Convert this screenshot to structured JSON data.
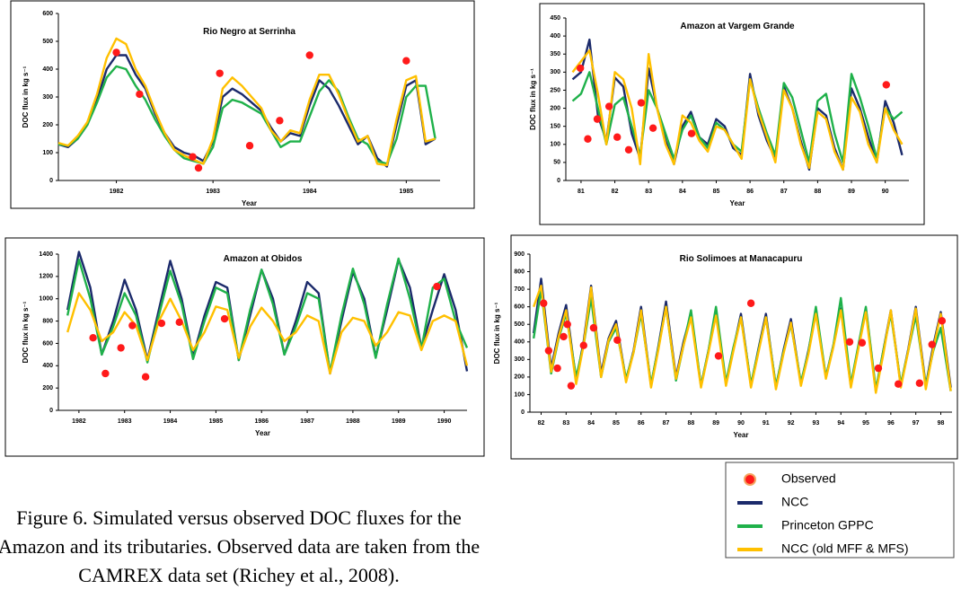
{
  "chart_data": [
    {
      "type": "line",
      "title": "Rio Negro at Serrinha",
      "xlabel": "Year",
      "ylabel": "DOC flux in kg s⁻¹",
      "xlim": [
        1981.4,
        1985.35
      ],
      "xticks": [
        1982,
        1983,
        1984,
        1985
      ],
      "ylim": [
        0,
        600
      ],
      "yticks": [
        0,
        100,
        200,
        300,
        400,
        500,
        600
      ],
      "x": [
        1981.4,
        1981.5,
        1981.6,
        1981.7,
        1981.8,
        1981.9,
        1982.0,
        1982.1,
        1982.2,
        1982.3,
        1982.4,
        1982.5,
        1982.6,
        1982.7,
        1982.8,
        1982.9,
        1983.0,
        1983.1,
        1983.2,
        1983.3,
        1983.4,
        1983.5,
        1983.6,
        1983.7,
        1983.8,
        1983.9,
        1984.0,
        1984.1,
        1984.2,
        1984.3,
        1984.4,
        1984.5,
        1984.6,
        1984.7,
        1984.8,
        1984.9,
        1985.0,
        1985.1,
        1985.2,
        1985.3
      ],
      "series": [
        {
          "values": [
            130,
            120,
            150,
            200,
            290,
            400,
            450,
            450,
            380,
            330,
            240,
            170,
            120,
            100,
            90,
            70,
            140,
            300,
            330,
            310,
            280,
            250,
            190,
            140,
            170,
            160,
            270,
            360,
            330,
            270,
            200,
            130,
            160,
            80,
            50,
            200,
            340,
            360,
            130,
            150
          ]
        },
        {
          "values": [
            130,
            125,
            150,
            200,
            280,
            370,
            410,
            400,
            340,
            290,
            220,
            160,
            110,
            80,
            70,
            60,
            120,
            260,
            290,
            280,
            260,
            240,
            180,
            120,
            140,
            140,
            230,
            320,
            360,
            320,
            230,
            150,
            130,
            70,
            60,
            150,
            300,
            340,
            340,
            150
          ]
        },
        {
          "values": [
            135,
            125,
            160,
            210,
            310,
            440,
            510,
            490,
            400,
            340,
            250,
            170,
            110,
            90,
            75,
            60,
            150,
            330,
            370,
            340,
            300,
            260,
            180,
            140,
            180,
            170,
            290,
            380,
            380,
            310,
            220,
            140,
            160,
            60,
            55,
            220,
            360,
            375,
            140,
            150
          ]
        }
      ],
      "observed": {
        "x": [
          1982.0,
          1982.24,
          1982.79,
          1982.85,
          1983.07,
          1983.38,
          1983.69,
          1984.0,
          1985.0
        ],
        "values": [
          460,
          310,
          85,
          45,
          385,
          125,
          215,
          450,
          430
        ]
      }
    },
    {
      "type": "line",
      "title": "Amazon at Vargem Grande",
      "xlabel": "Year",
      "ylabel": "DOC flux in kg s⁻¹",
      "xlim": [
        80.55,
        90.7
      ],
      "xticks": [
        81,
        82,
        83,
        84,
        85,
        86,
        87,
        88,
        89,
        90
      ],
      "ylim": [
        0,
        450
      ],
      "yticks": [
        0,
        50,
        100,
        150,
        200,
        250,
        300,
        350,
        400,
        450
      ],
      "x": [
        80.75,
        81.0,
        81.25,
        81.5,
        81.75,
        82.0,
        82.25,
        82.5,
        82.75,
        83.0,
        83.25,
        83.5,
        83.75,
        84.0,
        84.25,
        84.5,
        84.75,
        85.0,
        85.25,
        85.5,
        85.75,
        86.0,
        86.25,
        86.5,
        86.75,
        87.0,
        87.25,
        87.5,
        87.75,
        88.0,
        88.25,
        88.5,
        88.75,
        89.0,
        89.25,
        89.5,
        89.75,
        90.0,
        90.25,
        90.5
      ],
      "series": [
        {
          "values": [
            280,
            300,
            390,
            180,
            110,
            285,
            260,
            130,
            60,
            310,
            200,
            110,
            45,
            150,
            190,
            120,
            100,
            170,
            150,
            90,
            70,
            295,
            180,
            110,
            60,
            260,
            200,
            110,
            30,
            200,
            180,
            90,
            30,
            255,
            200,
            120,
            50,
            220,
            160,
            70
          ]
        },
        {
          "values": [
            220,
            240,
            300,
            200,
            100,
            210,
            230,
            150,
            70,
            250,
            200,
            130,
            60,
            140,
            180,
            120,
            90,
            160,
            140,
            100,
            80,
            280,
            200,
            130,
            70,
            270,
            230,
            140,
            50,
            220,
            240,
            130,
            50,
            295,
            230,
            150,
            60,
            200,
            170,
            190
          ]
        },
        {
          "values": [
            300,
            330,
            360,
            240,
            100,
            300,
            280,
            200,
            45,
            350,
            200,
            100,
            45,
            180,
            160,
            110,
            80,
            150,
            140,
            100,
            60,
            280,
            190,
            120,
            50,
            250,
            200,
            100,
            35,
            190,
            170,
            80,
            30,
            230,
            190,
            100,
            50,
            200,
            140,
            100
          ]
        }
      ],
      "observed": {
        "x": [
          80.98,
          81.2,
          81.48,
          81.83,
          82.07,
          82.41,
          82.78,
          83.13,
          84.27,
          90.03
        ],
        "values": [
          311,
          115,
          170,
          205,
          120,
          85,
          215,
          145,
          130,
          265
        ]
      }
    },
    {
      "type": "line",
      "title": "Amazon at Obidos",
      "xlabel": "Year",
      "ylabel": "DOC flux in kg s⁻¹",
      "xlim": [
        1981.55,
        1990.5
      ],
      "xticks": [
        1982,
        1983,
        1984,
        1985,
        1986,
        1987,
        1988,
        1989,
        1990
      ],
      "ylim": [
        0,
        1400
      ],
      "yticks": [
        0,
        200,
        400,
        600,
        800,
        1000,
        1200,
        1400
      ],
      "x": [
        1981.75,
        1982.0,
        1982.25,
        1982.5,
        1982.75,
        1983.0,
        1983.25,
        1983.5,
        1983.75,
        1984.0,
        1984.25,
        1984.5,
        1984.75,
        1985.0,
        1985.25,
        1985.5,
        1985.75,
        1986.0,
        1986.25,
        1986.5,
        1986.75,
        1987.0,
        1987.25,
        1987.5,
        1987.75,
        1988.0,
        1988.25,
        1988.5,
        1988.75,
        1989.0,
        1989.25,
        1989.5,
        1989.75,
        1990.0,
        1990.25,
        1990.5
      ],
      "series": [
        {
          "values": [
            900,
            1420,
            1100,
            500,
            800,
            1170,
            900,
            450,
            900,
            1340,
            1000,
            480,
            850,
            1150,
            1100,
            450,
            850,
            1260,
            1000,
            500,
            800,
            1150,
            1050,
            330,
            800,
            1240,
            1000,
            480,
            900,
            1350,
            1100,
            560,
            900,
            1220,
            900,
            350
          ]
        },
        {
          "values": [
            850,
            1350,
            1000,
            500,
            750,
            1050,
            850,
            430,
            850,
            1250,
            950,
            460,
            800,
            1100,
            1050,
            450,
            900,
            1260,
            950,
            500,
            750,
            1050,
            1000,
            340,
            850,
            1270,
            950,
            470,
            950,
            1360,
            1000,
            550,
            1100,
            1180,
            800,
            560
          ]
        },
        {
          "values": [
            700,
            1050,
            900,
            620,
            700,
            880,
            760,
            450,
            800,
            1000,
            800,
            540,
            700,
            930,
            900,
            470,
            750,
            920,
            800,
            620,
            700,
            850,
            800,
            330,
            700,
            830,
            800,
            580,
            700,
            880,
            850,
            540,
            800,
            850,
            800,
            400
          ]
        }
      ],
      "observed": {
        "x": [
          1982.31,
          1982.58,
          1982.92,
          1983.17,
          1983.46,
          1983.81,
          1984.2,
          1985.19,
          1989.84
        ],
        "values": [
          650,
          330,
          560,
          760,
          300,
          780,
          790,
          820,
          1110
        ]
      }
    },
    {
      "type": "line",
      "title": "Rio Solimoes at Manacapuru",
      "xlabel": "Year",
      "ylabel": "DOC flux in kg s⁻¹",
      "xlim": [
        81.55,
        98.45
      ],
      "xticks": [
        82,
        83,
        84,
        85,
        86,
        87,
        88,
        89,
        90,
        91,
        92,
        93,
        94,
        95,
        96,
        97,
        98
      ],
      "ylim": [
        0,
        900
      ],
      "yticks": [
        0,
        100,
        200,
        300,
        400,
        500,
        600,
        700,
        800,
        900
      ],
      "x": [
        81.7,
        82.0,
        82.4,
        82.7,
        83.0,
        83.4,
        83.7,
        84.0,
        84.4,
        84.7,
        85.0,
        85.4,
        85.7,
        86.0,
        86.4,
        86.7,
        87.0,
        87.4,
        87.7,
        88.0,
        88.4,
        88.7,
        89.0,
        89.4,
        89.7,
        90.0,
        90.4,
        90.7,
        91.0,
        91.4,
        91.7,
        92.0,
        92.4,
        92.7,
        93.0,
        93.4,
        93.7,
        94.0,
        94.4,
        94.7,
        95.0,
        95.4,
        95.7,
        96.0,
        96.4,
        96.7,
        97.0,
        97.4,
        97.7,
        98.0,
        98.4
      ],
      "series": [
        {
          "values": [
            450,
            760,
            250,
            450,
            610,
            180,
            400,
            720,
            220,
            420,
            520,
            180,
            350,
            600,
            150,
            380,
            630,
            200,
            400,
            560,
            150,
            350,
            570,
            160,
            360,
            560,
            150,
            360,
            560,
            140,
            350,
            530,
            160,
            350,
            570,
            200,
            380,
            590,
            150,
            370,
            590,
            120,
            350,
            580,
            150,
            360,
            600,
            150,
            380,
            570,
            140
          ]
        },
        {
          "values": [
            420,
            700,
            220,
            420,
            560,
            200,
            380,
            650,
            200,
            400,
            480,
            190,
            340,
            560,
            160,
            370,
            600,
            180,
            380,
            580,
            150,
            350,
            600,
            170,
            370,
            540,
            160,
            350,
            540,
            150,
            340,
            500,
            170,
            340,
            600,
            200,
            380,
            650,
            160,
            380,
            600,
            130,
            350,
            560,
            160,
            350,
            550,
            150,
            350,
            480,
            120
          ]
        },
        {
          "values": [
            600,
            720,
            230,
            430,
            580,
            160,
            380,
            710,
            200,
            410,
            500,
            170,
            340,
            580,
            140,
            360,
            600,
            190,
            380,
            540,
            140,
            340,
            550,
            150,
            350,
            540,
            140,
            340,
            540,
            130,
            330,
            510,
            150,
            330,
            560,
            190,
            370,
            580,
            140,
            360,
            570,
            110,
            330,
            580,
            140,
            350,
            590,
            130,
            360,
            560,
            120
          ]
        }
      ],
      "observed": {
        "x": [
          82.1,
          82.3,
          82.65,
          82.9,
          83.05,
          83.2,
          83.7,
          84.1,
          85.05,
          89.1,
          90.4,
          94.35,
          94.85,
          95.5,
          96.3,
          97.15,
          97.65,
          98.05
        ],
        "values": [
          620,
          350,
          250,
          430,
          500,
          150,
          380,
          480,
          410,
          320,
          620,
          400,
          395,
          250,
          160,
          165,
          385,
          520
        ]
      }
    }
  ],
  "legend": {
    "items": [
      {
        "name": "Observed",
        "color": "#ff1a1a"
      },
      {
        "name": "NCC",
        "color": "#1b2a6b"
      },
      {
        "name": "Princeton GPPC",
        "color": "#1fb14a"
      },
      {
        "name": "NCC (old MFF & MFS)",
        "color": "#ffc000"
      }
    ]
  },
  "caption": [
    "Figure 6. Simulated versus observed DOC fluxes for the",
    "Amazon and its tributaries. Observed data are taken from the",
    "CAMREX data set (Richey et al., 2008)."
  ]
}
